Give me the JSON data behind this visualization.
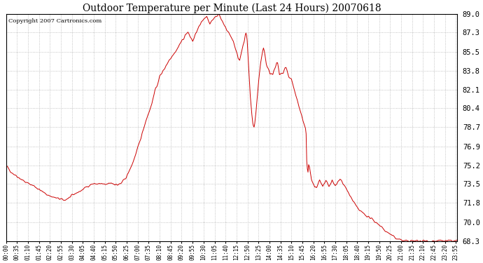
{
  "title": "Outdoor Temperature per Minute (Last 24 Hours) 20070618",
  "copyright_text": "Copyright 2007 Cartronics.com",
  "line_color": "#cc0000",
  "background_color": "#ffffff",
  "plot_bg_color": "#ffffff",
  "grid_color": "#aaaaaa",
  "ylim": [
    68.3,
    89.0
  ],
  "yticks": [
    68.3,
    70.0,
    71.8,
    73.5,
    75.2,
    76.9,
    78.7,
    80.4,
    82.1,
    83.8,
    85.5,
    87.3,
    89.0
  ],
  "xtick_labels": [
    "00:00",
    "00:35",
    "01:10",
    "01:45",
    "02:20",
    "02:55",
    "03:30",
    "04:05",
    "04:40",
    "05:15",
    "05:50",
    "06:25",
    "07:00",
    "07:35",
    "08:10",
    "08:45",
    "09:20",
    "09:55",
    "10:30",
    "11:05",
    "11:40",
    "12:15",
    "12:50",
    "13:25",
    "14:00",
    "14:35",
    "15:10",
    "15:45",
    "16:20",
    "16:55",
    "17:30",
    "18:05",
    "18:40",
    "19:15",
    "19:50",
    "20:25",
    "21:00",
    "21:35",
    "22:10",
    "22:45",
    "23:20",
    "23:55"
  ],
  "control_points": [
    [
      0,
      75.2
    ],
    [
      10,
      74.8
    ],
    [
      20,
      74.5
    ],
    [
      30,
      74.3
    ],
    [
      45,
      74.0
    ],
    [
      55,
      73.8
    ],
    [
      65,
      73.6
    ],
    [
      75,
      73.5
    ],
    [
      90,
      73.3
    ],
    [
      105,
      73.0
    ],
    [
      120,
      72.7
    ],
    [
      140,
      72.4
    ],
    [
      160,
      72.2
    ],
    [
      175,
      72.1
    ],
    [
      185,
      72.0
    ],
    [
      195,
      72.15
    ],
    [
      205,
      72.3
    ],
    [
      215,
      72.5
    ],
    [
      225,
      72.7
    ],
    [
      235,
      72.8
    ],
    [
      245,
      73.0
    ],
    [
      260,
      73.3
    ],
    [
      275,
      73.5
    ],
    [
      290,
      73.5
    ],
    [
      305,
      73.5
    ],
    [
      315,
      73.4
    ],
    [
      325,
      73.5
    ],
    [
      335,
      73.6
    ],
    [
      345,
      73.5
    ],
    [
      355,
      73.4
    ],
    [
      365,
      73.5
    ],
    [
      375,
      73.8
    ],
    [
      385,
      74.2
    ],
    [
      395,
      74.8
    ],
    [
      405,
      75.5
    ],
    [
      415,
      76.3
    ],
    [
      425,
      77.2
    ],
    [
      435,
      78.2
    ],
    [
      445,
      79.2
    ],
    [
      455,
      80.0
    ],
    [
      460,
      80.4
    ],
    [
      465,
      80.8
    ],
    [
      470,
      81.5
    ],
    [
      475,
      82.0
    ],
    [
      480,
      82.3
    ],
    [
      485,
      82.8
    ],
    [
      490,
      83.3
    ],
    [
      495,
      83.5
    ],
    [
      500,
      83.8
    ],
    [
      505,
      84.0
    ],
    [
      510,
      84.3
    ],
    [
      515,
      84.5
    ],
    [
      520,
      84.8
    ],
    [
      525,
      85.0
    ],
    [
      530,
      85.2
    ],
    [
      535,
      85.4
    ],
    [
      540,
      85.5
    ],
    [
      545,
      85.8
    ],
    [
      550,
      86.0
    ],
    [
      555,
      86.3
    ],
    [
      560,
      86.5
    ],
    [
      565,
      86.7
    ],
    [
      570,
      87.0
    ],
    [
      575,
      87.2
    ],
    [
      580,
      87.3
    ],
    [
      585,
      87.0
    ],
    [
      590,
      86.8
    ],
    [
      595,
      86.5
    ],
    [
      600,
      86.8
    ],
    [
      605,
      87.2
    ],
    [
      610,
      87.5
    ],
    [
      615,
      87.8
    ],
    [
      620,
      88.0
    ],
    [
      625,
      88.3
    ],
    [
      630,
      88.5
    ],
    [
      635,
      88.7
    ],
    [
      640,
      88.8
    ],
    [
      645,
      88.5
    ],
    [
      650,
      88.0
    ],
    [
      655,
      88.3
    ],
    [
      660,
      88.5
    ],
    [
      665,
      88.7
    ],
    [
      670,
      88.8
    ],
    [
      675,
      88.9
    ],
    [
      678,
      89.0
    ],
    [
      682,
      88.8
    ],
    [
      686,
      88.5
    ],
    [
      690,
      88.3
    ],
    [
      695,
      88.0
    ],
    [
      700,
      87.8
    ],
    [
      705,
      87.5
    ],
    [
      710,
      87.3
    ],
    [
      715,
      87.0
    ],
    [
      720,
      86.8
    ],
    [
      725,
      86.5
    ],
    [
      730,
      86.0
    ],
    [
      735,
      85.5
    ],
    [
      740,
      85.0
    ],
    [
      745,
      84.8
    ],
    [
      750,
      85.5
    ],
    [
      755,
      86.0
    ],
    [
      760,
      86.5
    ],
    [
      763,
      87.0
    ],
    [
      765,
      87.2
    ],
    [
      767,
      87.0
    ],
    [
      769,
      86.5
    ],
    [
      771,
      85.5
    ],
    [
      773,
      84.5
    ],
    [
      775,
      83.5
    ],
    [
      777,
      82.5
    ],
    [
      779,
      81.5
    ],
    [
      781,
      80.8
    ],
    [
      783,
      80.0
    ],
    [
      785,
      79.5
    ],
    [
      787,
      79.0
    ],
    [
      789,
      78.8
    ],
    [
      791,
      78.7
    ],
    [
      793,
      79.0
    ],
    [
      795,
      79.5
    ],
    [
      797,
      80.0
    ],
    [
      800,
      81.0
    ],
    [
      803,
      82.0
    ],
    [
      806,
      83.0
    ],
    [
      809,
      83.8
    ],
    [
      812,
      84.5
    ],
    [
      815,
      85.0
    ],
    [
      818,
      85.5
    ],
    [
      821,
      85.8
    ],
    [
      824,
      85.5
    ],
    [
      827,
      85.0
    ],
    [
      830,
      84.5
    ],
    [
      833,
      84.2
    ],
    [
      836,
      84.0
    ],
    [
      839,
      83.8
    ],
    [
      842,
      83.5
    ],
    [
      845,
      83.5
    ],
    [
      848,
      83.5
    ],
    [
      851,
      83.5
    ],
    [
      854,
      83.8
    ],
    [
      857,
      84.0
    ],
    [
      860,
      84.2
    ],
    [
      863,
      84.5
    ],
    [
      866,
      84.5
    ],
    [
      869,
      84.0
    ],
    [
      872,
      83.5
    ],
    [
      875,
      83.5
    ],
    [
      878,
      83.5
    ],
    [
      881,
      83.5
    ],
    [
      884,
      83.5
    ],
    [
      887,
      83.8
    ],
    [
      890,
      84.0
    ],
    [
      893,
      84.0
    ],
    [
      896,
      83.8
    ],
    [
      899,
      83.5
    ],
    [
      902,
      83.2
    ],
    [
      910,
      83.0
    ],
    [
      915,
      82.5
    ],
    [
      920,
      82.0
    ],
    [
      925,
      81.5
    ],
    [
      930,
      81.0
    ],
    [
      935,
      80.5
    ],
    [
      940,
      80.0
    ],
    [
      945,
      79.5
    ],
    [
      950,
      79.0
    ],
    [
      955,
      78.5
    ],
    [
      957,
      78.0
    ],
    [
      959,
      75.5
    ],
    [
      961,
      74.8
    ],
    [
      963,
      74.5
    ],
    [
      965,
      75.2
    ],
    [
      968,
      75.0
    ],
    [
      971,
      74.5
    ],
    [
      974,
      74.0
    ],
    [
      977,
      73.8
    ],
    [
      980,
      73.5
    ],
    [
      985,
      73.2
    ],
    [
      990,
      73.2
    ],
    [
      995,
      73.5
    ],
    [
      1000,
      73.8
    ],
    [
      1005,
      73.5
    ],
    [
      1010,
      73.2
    ],
    [
      1015,
      73.5
    ],
    [
      1020,
      73.8
    ],
    [
      1025,
      73.5
    ],
    [
      1030,
      73.3
    ],
    [
      1035,
      73.5
    ],
    [
      1040,
      73.8
    ],
    [
      1045,
      73.5
    ],
    [
      1050,
      73.3
    ],
    [
      1055,
      73.5
    ],
    [
      1060,
      73.8
    ],
    [
      1065,
      74.0
    ],
    [
      1070,
      73.8
    ],
    [
      1075,
      73.5
    ],
    [
      1080,
      73.3
    ],
    [
      1085,
      73.0
    ],
    [
      1090,
      72.8
    ],
    [
      1095,
      72.5
    ],
    [
      1100,
      72.3
    ],
    [
      1105,
      72.0
    ],
    [
      1110,
      71.8
    ],
    [
      1115,
      71.5
    ],
    [
      1120,
      71.3
    ],
    [
      1130,
      71.0
    ],
    [
      1140,
      70.8
    ],
    [
      1150,
      70.6
    ],
    [
      1160,
      70.4
    ],
    [
      1170,
      70.2
    ],
    [
      1180,
      70.0
    ],
    [
      1190,
      69.8
    ],
    [
      1200,
      69.5
    ],
    [
      1210,
      69.2
    ],
    [
      1220,
      69.0
    ],
    [
      1230,
      68.8
    ],
    [
      1240,
      68.6
    ],
    [
      1250,
      68.5
    ],
    [
      1260,
      68.4
    ],
    [
      1270,
      68.3
    ],
    [
      1350,
      68.3
    ],
    [
      1439,
      68.3
    ]
  ]
}
